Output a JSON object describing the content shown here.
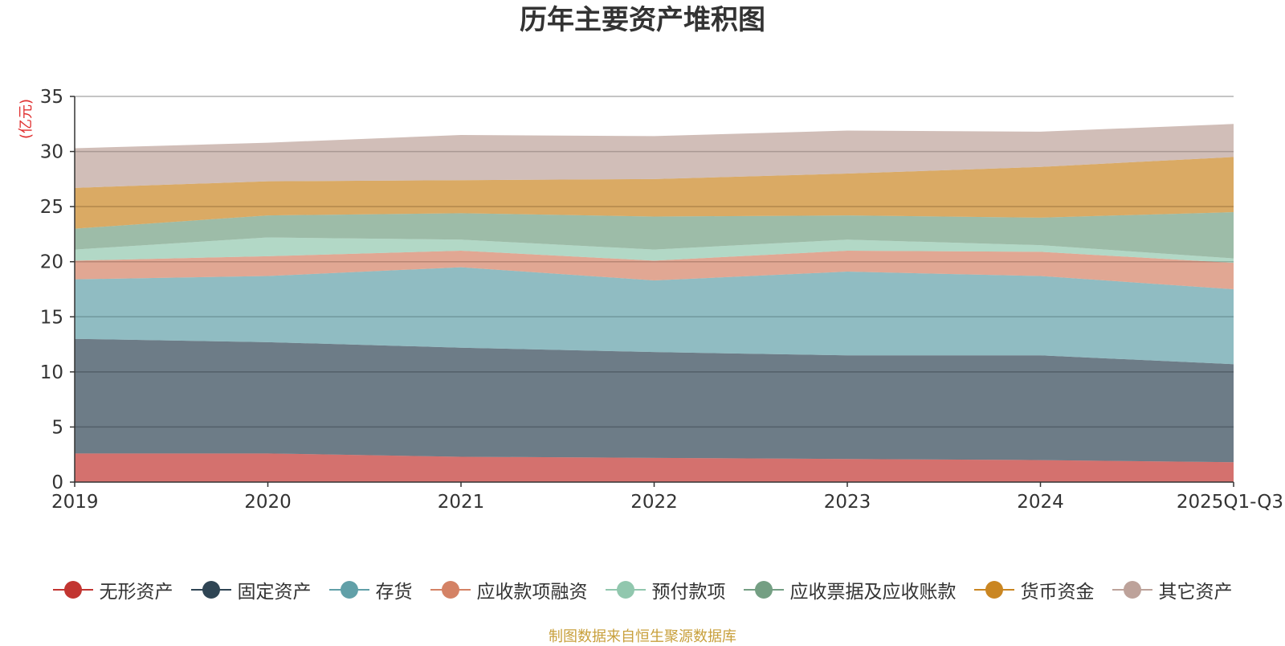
{
  "title": "历年主要资产堆积图",
  "source_note": "制图数据来自恒生聚源数据库",
  "chart_data": {
    "type": "area",
    "stacked": true,
    "title": "历年主要资产堆积图",
    "ylabel": "(亿元)",
    "xlabel": "",
    "categories": [
      "2019",
      "2020",
      "2021",
      "2022",
      "2023",
      "2024",
      "2025Q1-Q3"
    ],
    "ylim": [
      0,
      35
    ],
    "yticks": [
      0,
      5,
      10,
      15,
      20,
      25,
      30,
      35
    ],
    "grid": true,
    "legend_position": "bottom",
    "series": [
      {
        "name": "无形资产",
        "color": "#c23531",
        "values": [
          2.6,
          2.6,
          2.3,
          2.2,
          2.1,
          2.0,
          1.8
        ]
      },
      {
        "name": "固定资产",
        "color": "#2f4554",
        "values": [
          10.4,
          10.1,
          9.9,
          9.6,
          9.4,
          9.5,
          8.9
        ]
      },
      {
        "name": "存货",
        "color": "#61a0a8",
        "values": [
          5.4,
          6.0,
          7.3,
          6.5,
          7.6,
          7.2,
          6.8
        ]
      },
      {
        "name": "应收款项融资",
        "color": "#d48265",
        "values": [
          1.7,
          1.8,
          1.5,
          1.8,
          1.9,
          2.2,
          2.4
        ]
      },
      {
        "name": "预付款项",
        "color": "#91c7ae",
        "values": [
          1.0,
          1.7,
          1.0,
          1.0,
          1.0,
          0.6,
          0.4
        ]
      },
      {
        "name": "应收票据及应收账款",
        "color": "#749f83",
        "values": [
          1.9,
          2.0,
          2.4,
          3.0,
          2.2,
          2.5,
          4.2
        ]
      },
      {
        "name": "货币资金",
        "color": "#ca8622",
        "values": [
          3.7,
          3.1,
          3.0,
          3.4,
          3.8,
          4.6,
          5.0
        ]
      },
      {
        "name": "其它资产",
        "color": "#bda29a",
        "values": [
          3.6,
          3.5,
          4.1,
          3.9,
          3.9,
          3.2,
          3.0
        ]
      }
    ]
  }
}
